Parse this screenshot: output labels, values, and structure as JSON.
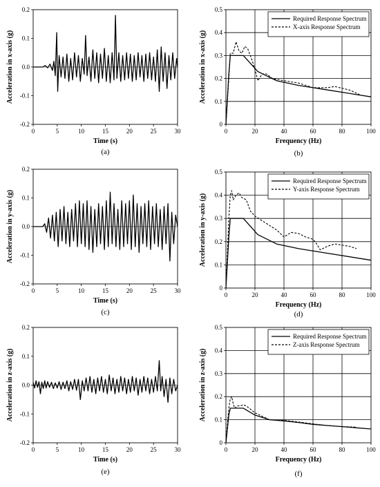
{
  "charts": [
    {
      "id": "a",
      "type": "line",
      "caption": "(a)",
      "xlabel": "Time (s)",
      "ylabel": "Acceleration in x-axis (g)",
      "xlim": [
        0,
        30
      ],
      "ylim": [
        -0.2,
        0.2
      ],
      "xticks": [
        0,
        5,
        10,
        15,
        20,
        25,
        30
      ],
      "yticks": [
        -0.2,
        -0.1,
        0.0,
        0.1,
        0.2
      ],
      "ytick_labels": [
        "-0.2",
        "-0.1",
        "0.0",
        "0.1",
        "0.2"
      ],
      "grid": false,
      "series": [
        {
          "style": "solid",
          "x": [
            0,
            2.0,
            2.5,
            3.0,
            3.5,
            4.0,
            4.3,
            4.6,
            4.9,
            5.1,
            5.4,
            5.8,
            6.2,
            6.6,
            7.0,
            7.4,
            7.8,
            8.2,
            8.6,
            9.0,
            9.4,
            9.8,
            10.2,
            10.6,
            10.9,
            11.2,
            11.6,
            12.0,
            12.4,
            12.8,
            13.2,
            13.6,
            14.0,
            14.4,
            14.8,
            15.2,
            15.6,
            16.0,
            16.4,
            16.8,
            17.1,
            17.4,
            17.8,
            18.2,
            18.6,
            19.0,
            19.4,
            19.8,
            20.2,
            20.6,
            21.0,
            21.4,
            21.8,
            22.2,
            22.6,
            23.0,
            23.4,
            23.8,
            24.2,
            24.6,
            25.0,
            25.4,
            25.8,
            26.2,
            26.6,
            27.0,
            27.4,
            27.8,
            28.2,
            28.6,
            29.0,
            29.4,
            29.8,
            30.0
          ],
          "y": [
            0,
            0,
            0.005,
            -0.003,
            0.01,
            -0.012,
            0.02,
            -0.03,
            0.12,
            -0.085,
            0.04,
            -0.035,
            0.035,
            -0.04,
            0.045,
            -0.05,
            0.03,
            -0.045,
            0.05,
            -0.035,
            0.04,
            -0.05,
            0.03,
            -0.025,
            0.11,
            -0.03,
            0.035,
            -0.05,
            0.06,
            -0.04,
            0.05,
            -0.055,
            0.045,
            -0.04,
            0.065,
            -0.05,
            0.04,
            -0.055,
            0.05,
            -0.045,
            0.18,
            -0.04,
            0.05,
            -0.05,
            0.04,
            -0.045,
            0.05,
            -0.04,
            0.045,
            -0.05,
            0.04,
            -0.045,
            0.05,
            -0.035,
            0.04,
            -0.05,
            0.045,
            -0.04,
            0.05,
            -0.045,
            0.035,
            -0.05,
            0.06,
            -0.085,
            0.07,
            -0.05,
            0.05,
            -0.075,
            0.04,
            -0.045,
            0.05,
            -0.04,
            0.03,
            0.0
          ]
        }
      ]
    },
    {
      "id": "b",
      "type": "line",
      "caption": "(b)",
      "xlabel": "Frequency (Hz)",
      "ylabel": "Acceleration in x-axis (g)",
      "xlim": [
        0,
        100
      ],
      "ylim": [
        0,
        0.5
      ],
      "xticks": [
        0,
        20,
        40,
        60,
        80,
        100
      ],
      "yticks": [
        0,
        0.1,
        0.2,
        0.3,
        0.4,
        0.5
      ],
      "ytick_labels": [
        "0",
        "0.1",
        "0.2",
        "0.3",
        "0.4",
        "0.5"
      ],
      "grid": true,
      "legend": "top-right",
      "series": [
        {
          "name": "Required Response Spectrum",
          "style": "solid",
          "x": [
            0,
            2,
            3,
            12,
            22,
            35,
            50,
            70,
            100
          ],
          "y": [
            0,
            0.22,
            0.3,
            0.3,
            0.23,
            0.19,
            0.17,
            0.15,
            0.12
          ]
        },
        {
          "name": "X-axis Response Spectrum",
          "style": "dashed",
          "x": [
            0,
            1,
            2,
            3,
            5,
            7,
            9,
            11,
            13,
            15,
            18,
            20,
            22,
            25,
            28,
            32,
            40,
            50,
            60,
            70,
            75,
            85,
            92
          ],
          "y": [
            0,
            0.1,
            0.2,
            0.31,
            0.31,
            0.36,
            0.32,
            0.31,
            0.34,
            0.33,
            0.28,
            0.24,
            0.19,
            0.22,
            0.22,
            0.2,
            0.19,
            0.18,
            0.16,
            0.16,
            0.165,
            0.15,
            0.13
          ]
        }
      ]
    },
    {
      "id": "c",
      "type": "line",
      "caption": "(c)",
      "xlabel": "Time (s)",
      "ylabel": "Acceleration in y-axis (g)",
      "xlim": [
        0,
        30
      ],
      "ylim": [
        -0.2,
        0.2
      ],
      "xticks": [
        0,
        5,
        10,
        15,
        20,
        25,
        30
      ],
      "yticks": [
        -0.2,
        -0.1,
        0.0,
        0.1,
        0.2
      ],
      "ytick_labels": [
        "-0.2",
        "-0.1",
        "0.0",
        "0.1",
        "0.2"
      ],
      "grid": false,
      "series": [
        {
          "style": "solid",
          "x": [
            0,
            2.0,
            2.4,
            2.8,
            3.2,
            3.6,
            4.0,
            4.4,
            4.8,
            5.2,
            5.6,
            6.0,
            6.4,
            6.8,
            7.2,
            7.6,
            8.0,
            8.4,
            8.8,
            9.2,
            9.6,
            10.0,
            10.4,
            10.8,
            11.2,
            11.6,
            12.0,
            12.4,
            12.8,
            13.2,
            13.6,
            14.0,
            14.4,
            14.8,
            15.2,
            15.6,
            16.0,
            16.4,
            16.8,
            17.2,
            17.6,
            18.0,
            18.4,
            18.8,
            19.2,
            19.6,
            20.0,
            20.4,
            20.8,
            21.2,
            21.6,
            22.0,
            22.4,
            22.8,
            23.2,
            23.6,
            24.0,
            24.4,
            24.8,
            25.2,
            25.6,
            26.0,
            26.4,
            26.8,
            27.2,
            27.6,
            28.0,
            28.4,
            28.8,
            29.2,
            29.6,
            30.0
          ],
          "y": [
            0,
            0,
            0.01,
            -0.02,
            0.03,
            -0.04,
            0.04,
            -0.05,
            0.05,
            -0.07,
            0.06,
            -0.05,
            0.07,
            -0.06,
            0.05,
            -0.07,
            0.06,
            -0.05,
            0.08,
            -0.07,
            0.09,
            -0.06,
            0.08,
            -0.07,
            0.09,
            -0.08,
            0.07,
            -0.09,
            0.06,
            -0.07,
            0.08,
            -0.06,
            0.07,
            -0.08,
            0.09,
            -0.07,
            0.12,
            -0.06,
            0.08,
            -0.07,
            0.06,
            -0.08,
            0.09,
            -0.07,
            0.08,
            -0.06,
            0.09,
            -0.08,
            0.11,
            -0.07,
            0.08,
            -0.09,
            0.07,
            -0.06,
            0.08,
            -0.07,
            0.09,
            -0.08,
            0.07,
            -0.06,
            0.08,
            -0.07,
            0.06,
            -0.08,
            0.07,
            -0.06,
            0.08,
            -0.12,
            0.05,
            -0.06,
            0.04,
            0.0
          ]
        }
      ]
    },
    {
      "id": "d",
      "type": "line",
      "caption": "(d)",
      "xlabel": "Frequency (Hz)",
      "ylabel": "Acceleration in y-axis (g)",
      "xlim": [
        0,
        100
      ],
      "ylim": [
        0,
        0.5
      ],
      "xticks": [
        0,
        20,
        40,
        60,
        80,
        100
      ],
      "yticks": [
        0,
        0.1,
        0.2,
        0.3,
        0.4,
        0.5
      ],
      "ytick_labels": [
        "0",
        "0.1",
        "0.2",
        "0.3",
        "0.4",
        "0.5"
      ],
      "grid": true,
      "legend": "top-right",
      "series": [
        {
          "name": "Required Response Spectrum",
          "style": "solid",
          "x": [
            0,
            2,
            3,
            12,
            22,
            35,
            50,
            70,
            100
          ],
          "y": [
            0,
            0.22,
            0.3,
            0.3,
            0.23,
            0.19,
            0.17,
            0.15,
            0.12
          ]
        },
        {
          "name": "Y-axis Response Spectrum",
          "style": "dashed",
          "x": [
            0,
            1,
            2,
            3,
            4,
            5,
            7,
            9,
            11,
            14,
            17,
            20,
            25,
            30,
            35,
            40,
            45,
            50,
            55,
            60,
            62,
            65,
            70,
            75,
            80,
            85,
            90
          ],
          "y": [
            0,
            0.15,
            0.3,
            0.4,
            0.42,
            0.38,
            0.4,
            0.41,
            0.39,
            0.38,
            0.33,
            0.31,
            0.29,
            0.27,
            0.25,
            0.22,
            0.24,
            0.235,
            0.22,
            0.21,
            0.195,
            0.165,
            0.18,
            0.19,
            0.185,
            0.18,
            0.17
          ]
        }
      ]
    },
    {
      "id": "e",
      "type": "line",
      "caption": "(e)",
      "xlabel": "Time (s)",
      "ylabel": "Acceleration in z-axis (g)",
      "xlim": [
        0,
        30
      ],
      "ylim": [
        -0.2,
        0.2
      ],
      "xticks": [
        0,
        5,
        10,
        15,
        20,
        25,
        30
      ],
      "yticks": [
        -0.2,
        -0.1,
        0.0,
        0.1,
        0.2
      ],
      "ytick_labels": [
        "-0.2",
        "-0.1",
        "0.0",
        "0.1",
        "0.2"
      ],
      "grid": false,
      "series": [
        {
          "style": "solid",
          "x": [
            0,
            0.3,
            0.6,
            0.9,
            1.2,
            1.5,
            1.8,
            2.1,
            2.4,
            2.7,
            3.0,
            3.4,
            3.8,
            4.2,
            4.6,
            5.0,
            5.4,
            5.8,
            6.2,
            6.6,
            7.0,
            7.4,
            7.8,
            8.2,
            8.6,
            9.0,
            9.4,
            9.8,
            10.2,
            10.6,
            11.0,
            11.4,
            11.8,
            12.2,
            12.6,
            13.0,
            13.4,
            13.8,
            14.2,
            14.6,
            15.0,
            15.4,
            15.8,
            16.2,
            16.6,
            17.0,
            17.4,
            17.8,
            18.2,
            18.6,
            19.0,
            19.4,
            19.8,
            20.2,
            20.6,
            21.0,
            21.4,
            21.8,
            22.2,
            22.6,
            23.0,
            23.4,
            23.8,
            24.2,
            24.6,
            25.0,
            25.4,
            25.8,
            26.2,
            26.5,
            26.8,
            27.2,
            27.6,
            28.0,
            28.4,
            28.8,
            29.2,
            29.6,
            30.0
          ],
          "y": [
            0.01,
            -0.01,
            0.015,
            -0.008,
            0.012,
            -0.03,
            0.01,
            -0.012,
            0.015,
            -0.01,
            0.012,
            -0.008,
            0.01,
            -0.012,
            0.008,
            -0.01,
            0.012,
            -0.015,
            0.01,
            -0.012,
            0.015,
            -0.02,
            0.012,
            -0.015,
            0.02,
            -0.018,
            0.02,
            -0.05,
            0.015,
            -0.02,
            0.025,
            -0.02,
            0.03,
            -0.025,
            0.02,
            -0.03,
            0.025,
            -0.02,
            0.03,
            -0.025,
            0.02,
            -0.03,
            0.035,
            -0.02,
            0.025,
            -0.03,
            0.02,
            -0.025,
            0.03,
            -0.02,
            0.025,
            -0.03,
            0.02,
            -0.025,
            0.03,
            -0.02,
            0.025,
            -0.035,
            0.02,
            -0.025,
            0.03,
            -0.02,
            0.025,
            -0.03,
            0.02,
            -0.025,
            0.03,
            -0.02,
            0.085,
            -0.02,
            0.03,
            -0.04,
            0.02,
            -0.06,
            0.025,
            -0.03,
            0.02,
            -0.02,
            0.0
          ]
        }
      ]
    },
    {
      "id": "f",
      "type": "line",
      "caption": "(f)",
      "xlabel": "Frequency (Hz)",
      "ylabel": "Acceleration in z-axis (g)",
      "xlim": [
        0,
        100
      ],
      "ylim": [
        0,
        0.5
      ],
      "xticks": [
        0,
        20,
        40,
        60,
        80,
        100
      ],
      "yticks": [
        0,
        0.1,
        0.2,
        0.3,
        0.4,
        0.5
      ],
      "ytick_labels": [
        "0",
        "0.1",
        "0.2",
        "0.3",
        "0.4",
        "0.5"
      ],
      "grid": true,
      "legend": "top-right",
      "series": [
        {
          "name": "Required Response Spectrum",
          "style": "solid",
          "x": [
            0,
            2,
            3,
            12,
            20,
            30,
            40,
            50,
            60,
            70,
            80,
            90,
            100
          ],
          "y": [
            0,
            0.12,
            0.15,
            0.15,
            0.12,
            0.1,
            0.095,
            0.088,
            0.08,
            0.075,
            0.07,
            0.065,
            0.06
          ]
        },
        {
          "name": "Z-axis Response Spectrum",
          "style": "dashed",
          "x": [
            0,
            1,
            2,
            3,
            4,
            5,
            6,
            8,
            10,
            12,
            14,
            16,
            18,
            20,
            25,
            30,
            40,
            50,
            60,
            70,
            80,
            90
          ],
          "y": [
            0,
            0.08,
            0.15,
            0.19,
            0.2,
            0.17,
            0.15,
            0.16,
            0.16,
            0.165,
            0.16,
            0.15,
            0.14,
            0.13,
            0.115,
            0.1,
            0.097,
            0.09,
            0.082,
            0.075,
            0.07,
            0.068
          ]
        }
      ]
    }
  ]
}
